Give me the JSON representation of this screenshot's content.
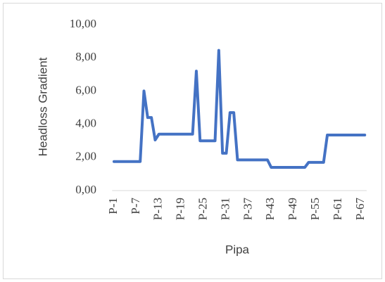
{
  "chart_data": {
    "type": "line",
    "x_label": "Pipa",
    "y_label": "Headloss Gradient",
    "categories": [
      "P-1",
      null,
      null,
      null,
      null,
      null,
      "P-7",
      null,
      null,
      null,
      null,
      null,
      "P-13",
      null,
      null,
      null,
      null,
      null,
      "P-19",
      null,
      null,
      null,
      null,
      null,
      "P-25",
      null,
      null,
      null,
      null,
      null,
      "P-31",
      null,
      null,
      null,
      null,
      null,
      "P-37",
      null,
      null,
      null,
      null,
      null,
      "P-43",
      null,
      null,
      null,
      null,
      null,
      "P-49",
      null,
      null,
      null,
      null,
      null,
      "P-55",
      null,
      null,
      null,
      null,
      null,
      "P-61",
      null,
      null,
      null,
      null,
      null,
      "P-67",
      null
    ],
    "values": [
      1.75,
      1.75,
      1.75,
      1.75,
      1.75,
      1.75,
      1.75,
      1.75,
      6.0,
      4.4,
      4.4,
      3.05,
      3.4,
      3.4,
      3.4,
      3.4,
      3.4,
      3.4,
      3.4,
      3.4,
      3.4,
      3.4,
      7.2,
      3.0,
      3.0,
      3.0,
      3.0,
      3.0,
      8.45,
      2.25,
      2.25,
      4.7,
      4.7,
      1.85,
      1.85,
      1.85,
      1.85,
      1.85,
      1.85,
      1.85,
      1.85,
      1.85,
      1.4,
      1.4,
      1.4,
      1.4,
      1.4,
      1.4,
      1.4,
      1.4,
      1.4,
      1.4,
      1.7,
      1.7,
      1.7,
      1.7,
      1.7,
      3.35,
      3.35,
      3.35,
      3.35,
      3.35,
      3.35,
      3.35,
      3.35,
      3.35,
      3.35,
      3.35
    ],
    "color": "#4472c4",
    "ylim": [
      0,
      10
    ],
    "yticks": [
      {
        "value": 0,
        "label": "0,00"
      },
      {
        "value": 2,
        "label": "2,00"
      },
      {
        "value": 4,
        "label": "4,00"
      },
      {
        "value": 6,
        "label": "6,00"
      },
      {
        "value": 8,
        "label": "8,00"
      },
      {
        "value": 10,
        "label": "10,00"
      }
    ],
    "grid": false
  }
}
